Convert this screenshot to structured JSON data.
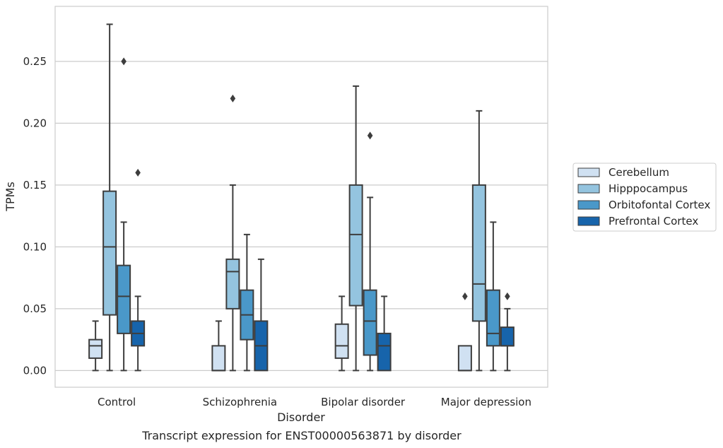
{
  "chart_data": {
    "type": "box",
    "caption": "Transcript expression for ENST00000563871 by disorder",
    "xlabel": "Disorder",
    "ylabel": "TPMs",
    "ylim": [
      -0.0135,
      0.2945
    ],
    "yticks": [
      0.0,
      0.05,
      0.1,
      0.15,
      0.2,
      0.25
    ],
    "ytick_labels": [
      "0.00",
      "0.05",
      "0.10",
      "0.15",
      "0.20",
      "0.25"
    ],
    "grid": "horizontal",
    "legend_position": "right",
    "categories": [
      "Control",
      "Schizophrenia",
      "Bipolar disorder",
      "Major depression"
    ],
    "series": [
      {
        "name": "Cerebellum",
        "color": "#d0e1f2",
        "boxes": [
          {
            "whislo": 0.0,
            "q1": 0.01,
            "med": 0.02,
            "q3": 0.025,
            "whishi": 0.04,
            "fliers": []
          },
          {
            "whislo": 0.0,
            "q1": 0.0,
            "med": 0.0,
            "q3": 0.02,
            "whishi": 0.04,
            "fliers": []
          },
          {
            "whislo": 0.0,
            "q1": 0.01,
            "med": 0.02,
            "q3": 0.0375,
            "whishi": 0.06,
            "fliers": []
          },
          {
            "whislo": 0.0,
            "q1": 0.0,
            "med": 0.0,
            "q3": 0.02,
            "whishi": 0.02,
            "fliers": [
              0.06
            ]
          }
        ]
      },
      {
        "name": "Hipppocampus",
        "color": "#94c4df",
        "boxes": [
          {
            "whislo": 0.0,
            "q1": 0.045,
            "med": 0.1,
            "q3": 0.145,
            "whishi": 0.28,
            "fliers": []
          },
          {
            "whislo": 0.0,
            "q1": 0.05,
            "med": 0.08,
            "q3": 0.09,
            "whishi": 0.15,
            "fliers": [
              0.22
            ]
          },
          {
            "whislo": 0.0,
            "q1": 0.0525,
            "med": 0.11,
            "q3": 0.15,
            "whishi": 0.23,
            "fliers": []
          },
          {
            "whislo": 0.0,
            "q1": 0.04,
            "med": 0.07,
            "q3": 0.15,
            "whishi": 0.21,
            "fliers": []
          }
        ]
      },
      {
        "name": "Orbitofontal Cortex",
        "color": "#4a98c9",
        "boxes": [
          {
            "whislo": 0.0,
            "q1": 0.03,
            "med": 0.06,
            "q3": 0.085,
            "whishi": 0.12,
            "fliers": [
              0.25
            ]
          },
          {
            "whislo": 0.0,
            "q1": 0.025,
            "med": 0.045,
            "q3": 0.065,
            "whishi": 0.11,
            "fliers": []
          },
          {
            "whislo": 0.0,
            "q1": 0.0125,
            "med": 0.04,
            "q3": 0.065,
            "whishi": 0.14,
            "fliers": [
              0.19
            ]
          },
          {
            "whislo": 0.0,
            "q1": 0.02,
            "med": 0.03,
            "q3": 0.065,
            "whishi": 0.12,
            "fliers": []
          }
        ]
      },
      {
        "name": "Prefrontal Cortex",
        "color": "#1764ab",
        "boxes": [
          {
            "whislo": 0.0,
            "q1": 0.02,
            "med": 0.03,
            "q3": 0.04,
            "whishi": 0.06,
            "fliers": [
              0.16
            ]
          },
          {
            "whislo": 0.0,
            "q1": 0.0,
            "med": 0.02,
            "q3": 0.04,
            "whishi": 0.09,
            "fliers": []
          },
          {
            "whislo": 0.0,
            "q1": 0.0,
            "med": 0.02,
            "q3": 0.03,
            "whishi": 0.06,
            "fliers": []
          },
          {
            "whislo": 0.0,
            "q1": 0.02,
            "med": 0.02,
            "q3": 0.035,
            "whishi": 0.05,
            "fliers": [
              0.06
            ]
          }
        ]
      }
    ]
  }
}
